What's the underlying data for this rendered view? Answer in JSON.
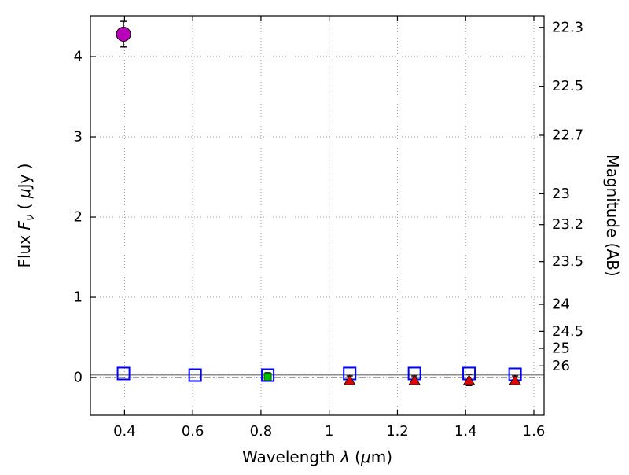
{
  "chart_data": {
    "type": "scatter",
    "title": "",
    "xlabel_rich": [
      {
        "t": "Wavelength  ",
        "i": false,
        "sub": false
      },
      {
        "t": "λ",
        "i": true,
        "sub": false
      },
      {
        "t": " (",
        "i": false,
        "sub": false
      },
      {
        "t": "μ",
        "i": true,
        "sub": false
      },
      {
        "t": "m)",
        "i": false,
        "sub": false
      }
    ],
    "ylabel_rich": [
      {
        "t": "Flux  ",
        "i": false,
        "sub": false
      },
      {
        "t": "F",
        "i": true,
        "sub": false
      },
      {
        "t": "ν",
        "i": true,
        "sub": true
      },
      {
        "t": "  ( ",
        "i": false,
        "sub": false
      },
      {
        "t": "μ",
        "i": true,
        "sub": false
      },
      {
        "t": "Jy )",
        "i": false,
        "sub": false
      }
    ],
    "ylabel_right": "Magnitude (AB)",
    "xlim": [
      0.3,
      1.63
    ],
    "ylim": [
      -0.47,
      4.51
    ],
    "grid": true,
    "legend": "none",
    "x_ticks": [
      {
        "v": 0.4,
        "label": "0.4"
      },
      {
        "v": 0.6,
        "label": "0.6"
      },
      {
        "v": 0.8,
        "label": "0.8"
      },
      {
        "v": 1.0,
        "label": "1"
      },
      {
        "v": 1.2,
        "label": "1.2"
      },
      {
        "v": 1.4,
        "label": "1.4"
      },
      {
        "v": 1.6,
        "label": "1.6"
      }
    ],
    "y_ticks_left": [
      {
        "v": 0,
        "label": "0"
      },
      {
        "v": 1,
        "label": "1"
      },
      {
        "v": 2,
        "label": "2"
      },
      {
        "v": 3,
        "label": "3"
      },
      {
        "v": 4,
        "label": "4"
      }
    ],
    "y_ticks_right": [
      {
        "label": "22.3",
        "flux": 4.365
      },
      {
        "label": "22.5",
        "flux": 3.631
      },
      {
        "label": "22.7",
        "flux": 3.02
      },
      {
        "label": "23",
        "flux": 2.291
      },
      {
        "label": "23.2",
        "flux": 1.905
      },
      {
        "label": "23.5",
        "flux": 1.445
      },
      {
        "label": "24",
        "flux": 0.912
      },
      {
        "label": "24.5",
        "flux": 0.575
      },
      {
        "label": "25",
        "flux": 0.363
      },
      {
        "label": "26",
        "flux": 0.145
      }
    ],
    "ref_lines": [
      {
        "name": "model-spectrum-line",
        "y": 0.035,
        "color": "#8c8c8c",
        "style": "solid",
        "width": 2
      },
      {
        "name": "zero-flux-line",
        "y": 0.0,
        "color": "#404040",
        "style": "dashdot",
        "width": 1
      }
    ],
    "series": [
      {
        "name": "blue-limit-squares",
        "marker": "open-square",
        "color": "#0000ff",
        "points": [
          {
            "x": 0.397,
            "y": 0.05
          },
          {
            "x": 0.607,
            "y": 0.03
          },
          {
            "x": 0.82,
            "y": 0.03
          },
          {
            "x": 1.06,
            "y": 0.05
          },
          {
            "x": 1.25,
            "y": 0.05
          },
          {
            "x": 1.41,
            "y": 0.05
          },
          {
            "x": 1.545,
            "y": 0.04
          }
        ]
      },
      {
        "name": "green-detection-square",
        "marker": "filled-square",
        "color": "#00bf00",
        "edge": "#006600",
        "points": [
          {
            "x": 0.82,
            "y": 0.01,
            "yerr": 0.05
          }
        ]
      },
      {
        "name": "red-detection-triangles",
        "marker": "triangle-up",
        "color": "#e00000",
        "edge": "#000000",
        "points": [
          {
            "x": 1.06,
            "y": -0.03,
            "yerr": 0.05
          },
          {
            "x": 1.25,
            "y": -0.03,
            "yerr": 0.05
          },
          {
            "x": 1.41,
            "y": -0.03,
            "yerr": 0.07
          },
          {
            "x": 1.545,
            "y": -0.03,
            "yerr": 0.05
          }
        ]
      },
      {
        "name": "magenta-detection-circle",
        "marker": "circle",
        "color": "#bb00bb",
        "edge": "#000000",
        "points": [
          {
            "x": 0.397,
            "y": 4.28,
            "yerr": 0.16
          }
        ]
      }
    ],
    "colors": {
      "grid": "#9f9f9f",
      "axis": "#000000",
      "errorbar": "#000000",
      "background": "#ffffff"
    }
  }
}
